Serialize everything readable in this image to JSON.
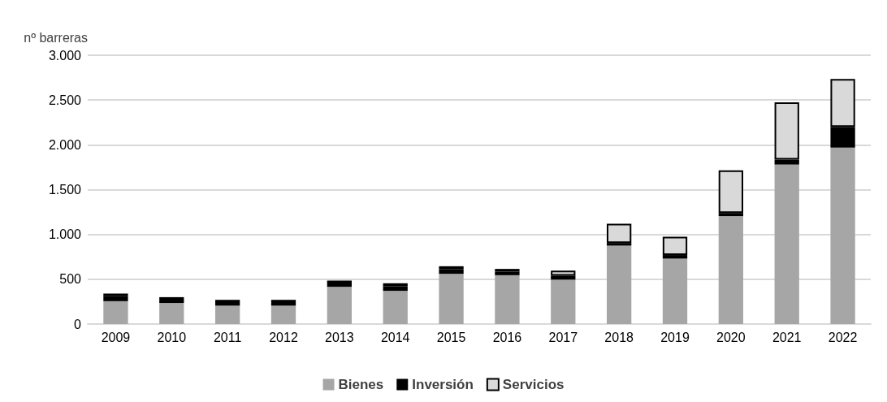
{
  "chart_data": {
    "type": "bar",
    "ylabel": "nº barreras",
    "stacked": true,
    "categories": [
      "2009",
      "2010",
      "2011",
      "2012",
      "2013",
      "2014",
      "2015",
      "2016",
      "2017",
      "2018",
      "2019",
      "2020",
      "2021",
      "2022"
    ],
    "series": [
      {
        "name": "Bienes",
        "color": "#a6a6a6",
        "values": [
          255,
          235,
          205,
          205,
          415,
          370,
          560,
          545,
          495,
          875,
          730,
          1205,
          1780,
          1970
        ]
      },
      {
        "name": "Inversión",
        "color": "#000000",
        "values": [
          55,
          65,
          65,
          65,
          70,
          50,
          50,
          40,
          45,
          30,
          40,
          35,
          55,
          230
        ]
      },
      {
        "name": "Servicios",
        "color": "#d9d9d9",
        "values": [
          30,
          null,
          null,
          null,
          null,
          35,
          35,
          30,
          55,
          215,
          205,
          475,
          640,
          535
        ]
      }
    ],
    "ylim": [
      0,
      3000
    ],
    "yticks": [
      0,
      {
        "value": 500,
        "label": "500"
      },
      {
        "value": 1000,
        "label": "1.000"
      },
      {
        "value": 1500,
        "label": "1.500"
      },
      {
        "value": 2000,
        "label": "2.000"
      },
      {
        "value": 2500,
        "label": "2.500"
      },
      {
        "value": 3000,
        "label": "3.000"
      }
    ],
    "grid": "y",
    "legend": "bottom"
  }
}
